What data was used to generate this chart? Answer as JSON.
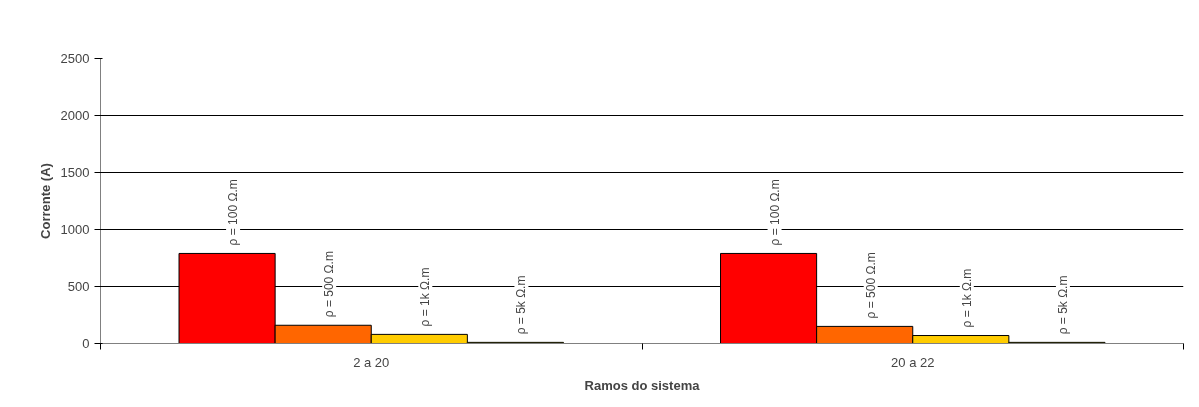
{
  "chart_data": {
    "type": "bar",
    "xlabel": "Ramos do sistema",
    "ylabel": "Corrente (A)",
    "categories": [
      "2 a 20",
      "20 a 22"
    ],
    "series": [
      {
        "name": "ρ = 100 Ω.m",
        "color": "#ff0000",
        "values": [
          790,
          790
        ]
      },
      {
        "name": "ρ = 500 Ω.m",
        "color": "#ff6600",
        "values": [
          160,
          150
        ]
      },
      {
        "name": "ρ = 1k Ω.m",
        "color": "#ffcc00",
        "values": [
          80,
          70
        ]
      },
      {
        "name": "ρ = 5k Ω.m",
        "color": "#ffff00",
        "values": [
          10,
          10
        ]
      }
    ],
    "ylim": [
      0,
      2500
    ],
    "yticks": [
      0,
      500,
      1000,
      1500,
      2000,
      2500
    ],
    "grid": "y"
  }
}
